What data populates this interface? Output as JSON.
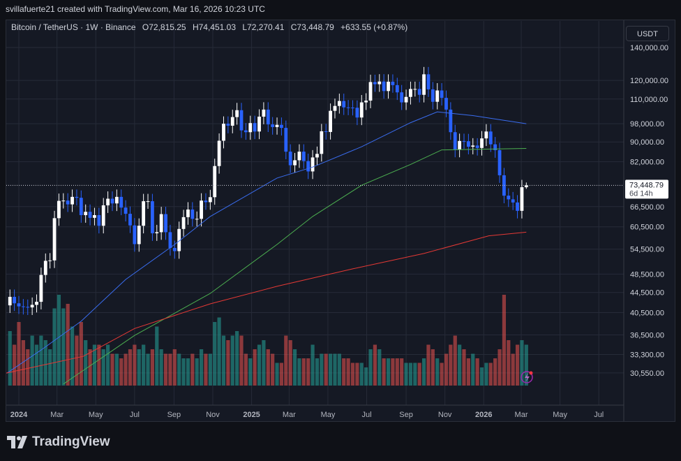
{
  "credit": "svillafuerte21 created with TradingView.com, Mar 16, 2026 10:23 UTC",
  "legend": {
    "symbol": "Bitcoin / TetherUS · 1W · Binance",
    "open": "O72,815.25",
    "high": "H74,451.03",
    "low": "L72,270.41",
    "close": "C73,448.79",
    "change": "+633.55 (+0.87%)"
  },
  "currency": "USDT",
  "last_price_label": "73,448.79",
  "countdown_label": "6d 14h",
  "brand": "TradingView",
  "colors": {
    "background": "#151924",
    "grid": "#262b38",
    "bull_candle": "#ffffff",
    "bear_candle": "#2962ff",
    "bull_volume": "#26a69a",
    "bear_volume": "#ef5350",
    "ma_blue": "#3a6df0",
    "ma_green": "#4caf50",
    "ma_red": "#e53935"
  },
  "chart_data": {
    "type": "candlestick",
    "title": "",
    "y_scale": "log",
    "ylim": [
      29000,
      150000
    ],
    "grid": true,
    "y_ticks": [
      "140,000.00",
      "120,000.00",
      "110,000.00",
      "98,000.00",
      "90,000.00",
      "82,000.00",
      "66,500.00",
      "60,500.00",
      "54,500.00",
      "48,500.00",
      "44,500.00",
      "40,500.00",
      "36,500.00",
      "33,300.00",
      "30,550.00"
    ],
    "y_tick_values": [
      140000,
      120000,
      110000,
      98000,
      90000,
      82000,
      66500,
      60500,
      54500,
      48500,
      44500,
      40500,
      36500,
      33300,
      30550
    ],
    "x_ticks": [
      {
        "label": "2024",
        "date": "2024-01-01",
        "bold": true
      },
      {
        "label": "Mar",
        "date": "2024-03-01"
      },
      {
        "label": "May",
        "date": "2024-05-01"
      },
      {
        "label": "Jul",
        "date": "2024-07-01"
      },
      {
        "label": "Sep",
        "date": "2024-09-01"
      },
      {
        "label": "Nov",
        "date": "2024-11-01"
      },
      {
        "label": "2025",
        "date": "2025-01-01",
        "bold": true
      },
      {
        "label": "Mar",
        "date": "2025-03-01"
      },
      {
        "label": "May",
        "date": "2025-05-01"
      },
      {
        "label": "Jul",
        "date": "2025-07-01"
      },
      {
        "label": "Sep",
        "date": "2025-09-01"
      },
      {
        "label": "Nov",
        "date": "2025-11-01"
      },
      {
        "label": "2026",
        "date": "2026-01-01",
        "bold": true
      },
      {
        "label": "Mar",
        "date": "2026-03-01"
      },
      {
        "label": "May",
        "date": "2026-05-01"
      },
      {
        "label": "Jul",
        "date": "2026-07-01"
      }
    ],
    "first_candle_date": "2023-12-18",
    "interval": "1W",
    "first_open": 41900,
    "closes": [
      43600,
      42300,
      41700,
      41600,
      41500,
      42000,
      42600,
      48300,
      51600,
      51700,
      63000,
      68300,
      68400,
      67200,
      69600,
      69300,
      63900,
      64900,
      63100,
      63900,
      60800,
      66900,
      69000,
      67500,
      69600,
      66200,
      64300,
      60900,
      55800,
      60800,
      68200,
      68200,
      58700,
      59000,
      64200,
      59000,
      54800,
      54000,
      59900,
      63300,
      65600,
      62800,
      62800,
      68400,
      67900,
      69500,
      80400,
      90500,
      98000,
      97100,
      101100,
      104400,
      95000,
      94200,
      98300,
      94500,
      101300,
      104700,
      97700,
      96500,
      97500,
      96100,
      86000,
      80700,
      82600,
      86000,
      82300,
      78400,
      83700,
      85100,
      94600,
      94300,
      104100,
      106500,
      109000,
      105800,
      105700,
      105600,
      100900,
      108300,
      109200,
      119100,
      117900,
      119400,
      114200,
      119300,
      117400,
      113500,
      108300,
      111100,
      115300,
      115300,
      112200,
      123500,
      115100,
      108600,
      114500,
      110600,
      104700,
      94200,
      86800,
      90400,
      90300,
      88000,
      88500,
      87500,
      91500,
      94500,
      89000,
      86600,
      77000,
      70000,
      68800,
      67800,
      65200,
      72815.25,
      73448.79
    ],
    "last_candle": {
      "open": 72815.25,
      "high": 74451.03,
      "low": 72270.41,
      "close": 73448.79
    },
    "volume_relative": [
      60,
      45,
      70,
      50,
      40,
      55,
      45,
      55,
      50,
      40,
      85,
      100,
      85,
      90,
      65,
      55,
      70,
      50,
      40,
      45,
      45,
      40,
      45,
      35,
      35,
      30,
      35,
      40,
      45,
      40,
      45,
      35,
      40,
      65,
      40,
      35,
      35,
      40,
      35,
      30,
      30,
      35,
      30,
      40,
      35,
      35,
      70,
      75,
      55,
      50,
      55,
      60,
      55,
      35,
      30,
      40,
      45,
      50,
      40,
      35,
      25,
      25,
      55,
      50,
      40,
      30,
      30,
      30,
      45,
      30,
      35,
      35,
      35,
      35,
      35,
      30,
      30,
      25,
      25,
      25,
      20,
      40,
      45,
      40,
      30,
      30,
      30,
      30,
      30,
      25,
      25,
      25,
      25,
      30,
      45,
      40,
      30,
      25,
      35,
      45,
      55,
      45,
      40,
      30,
      35,
      30,
      20,
      25,
      25,
      30,
      40,
      100,
      50,
      35,
      45,
      50,
      45
    ],
    "moving_averages": [
      {
        "color": "blue",
        "points": [
          [
            "2023-12-13",
            30500
          ],
          [
            "2024-02-05",
            34000
          ],
          [
            "2024-04-08",
            38900
          ],
          [
            "2024-06-17",
            47300
          ],
          [
            "2024-09-02",
            55700
          ],
          [
            "2024-10-28",
            63500
          ],
          [
            "2025-02-10",
            76000
          ],
          [
            "2025-04-07",
            80000
          ],
          [
            "2025-06-23",
            88000
          ],
          [
            "2025-09-08",
            98500
          ],
          [
            "2025-10-20",
            103600
          ],
          [
            "2025-12-15",
            101800
          ],
          [
            "2026-03-09",
            98000
          ]
        ]
      },
      {
        "color": "green",
        "points": [
          [
            "2024-03-11",
            29000
          ],
          [
            "2024-07-01",
            36400
          ],
          [
            "2024-10-28",
            44300
          ],
          [
            "2025-02-10",
            55700
          ],
          [
            "2025-04-07",
            63500
          ],
          [
            "2025-06-23",
            73500
          ],
          [
            "2025-09-08",
            81000
          ],
          [
            "2025-10-27",
            86700
          ],
          [
            "2026-03-09",
            87300
          ]
        ]
      },
      {
        "color": "red",
        "points": [
          [
            "2023-12-11",
            30500
          ],
          [
            "2024-04-11",
            33000
          ],
          [
            "2024-07-01",
            37600
          ],
          [
            "2024-10-28",
            42200
          ],
          [
            "2025-02-10",
            45800
          ],
          [
            "2025-06-09",
            49700
          ],
          [
            "2025-09-29",
            53400
          ],
          [
            "2026-01-09",
            58000
          ],
          [
            "2026-03-09",
            59000
          ]
        ]
      }
    ]
  }
}
